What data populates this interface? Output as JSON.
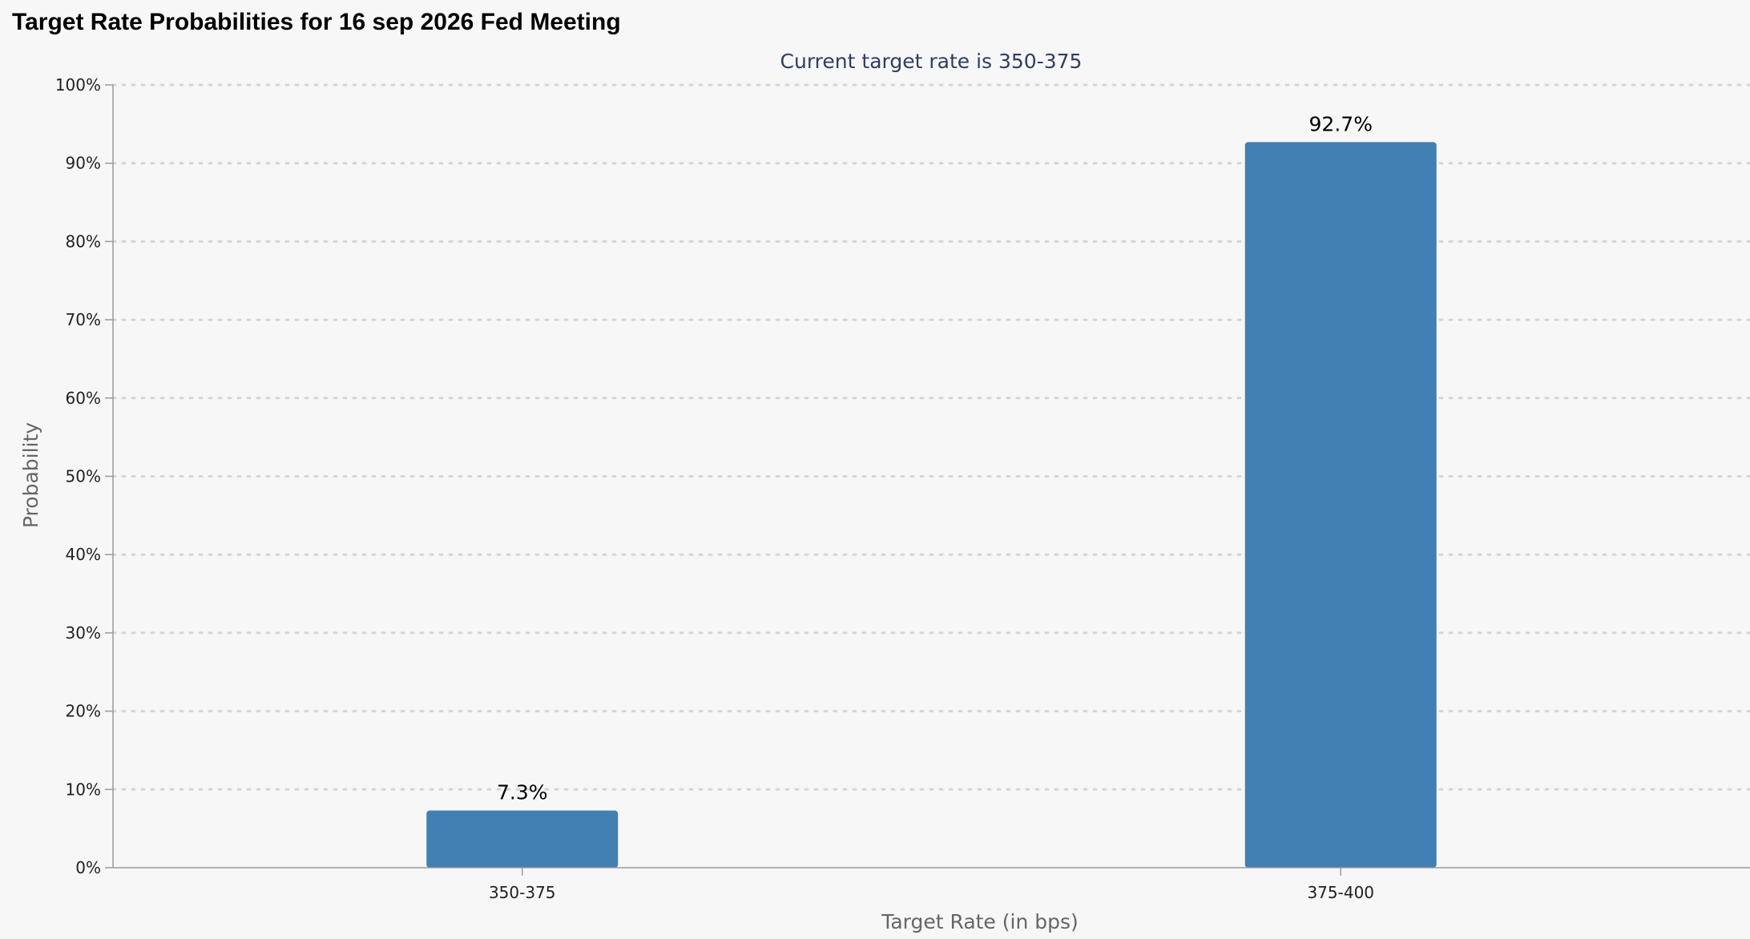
{
  "page": {
    "title": "Target Rate Probabilities for 16 sep 2026 Fed Meeting"
  },
  "colors": {
    "bar": "#427fb3",
    "subtitle": "#2e3d64",
    "axis_text": "#222222",
    "axis_title": "#666666",
    "grid": "#d5d5d5",
    "axis_line": "#9a9a9a",
    "background": "#f7f7f7"
  },
  "chart_data": {
    "type": "bar",
    "subtitle": "Current target rate is 350-375",
    "xlabel": "Target Rate (in bps)",
    "ylabel": "Probability",
    "categories": [
      "350-375",
      "375-400"
    ],
    "values": [
      7.3,
      92.7
    ],
    "data_labels": [
      "7.3%",
      "92.7%"
    ],
    "ylim": [
      0,
      100
    ],
    "yticks": [
      "0%",
      "10%",
      "20%",
      "30%",
      "40%",
      "50%",
      "60%",
      "70%",
      "80%",
      "90%",
      "100%"
    ],
    "grid": true,
    "legend": "none"
  }
}
